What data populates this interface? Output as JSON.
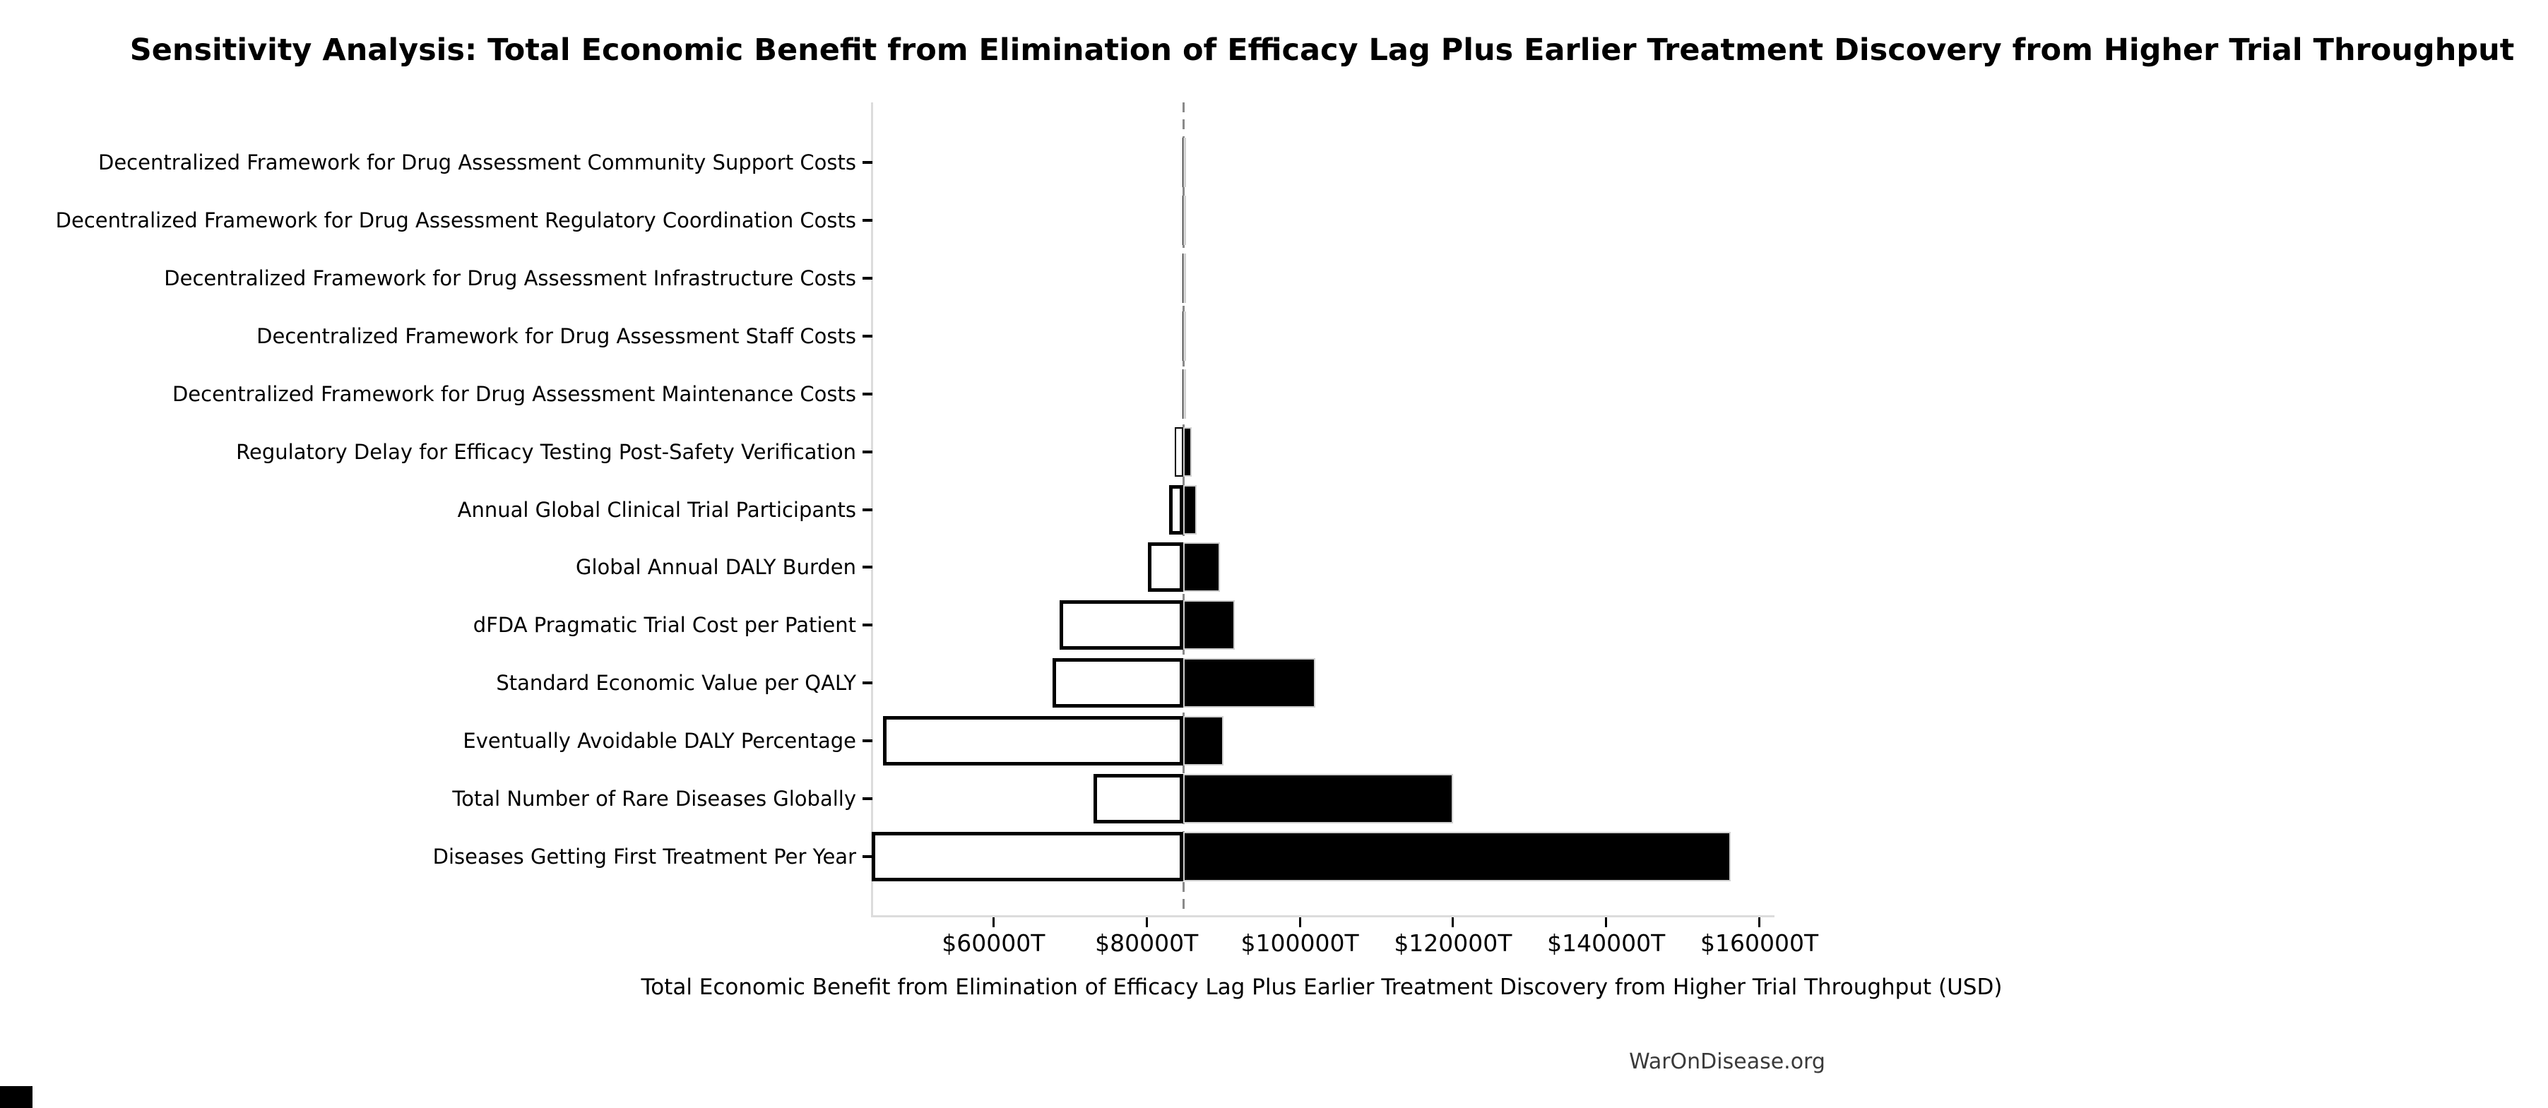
{
  "chart_data": {
    "type": "bar",
    "variant": "tornado-sensitivity",
    "title": "Sensitivity Analysis: Total Economic Benefit from Elimination of Efficacy Lag Plus Earlier Treatment Discovery from Higher Trial Throughput",
    "xlabel": "Total Economic Benefit from Elimination of Efficacy Lag Plus Earlier Treatment Discovery from Higher Trial Throughput (USD)",
    "x_ticks": [
      {
        "label": "$60000T",
        "value": 60000
      },
      {
        "label": "$80000T",
        "value": 80000
      },
      {
        "label": "$100000T",
        "value": 100000
      },
      {
        "label": "$120000T",
        "value": 120000
      },
      {
        "label": "$140000T",
        "value": 140000
      },
      {
        "label": "$160000T",
        "value": 160000
      }
    ],
    "xlim": [
      44100,
      161700
    ],
    "baseline_value": 84800,
    "grid": false,
    "legend": null,
    "rows": [
      {
        "label": "Decentralized Framework for Drug Assessment Community Support Costs",
        "low": 84700,
        "high": 84900
      },
      {
        "label": "Decentralized Framework for Drug Assessment Regulatory Coordination Costs",
        "low": 84700,
        "high": 84900
      },
      {
        "label": "Decentralized Framework for Drug Assessment Infrastructure Costs",
        "low": 84700,
        "high": 84900
      },
      {
        "label": "Decentralized Framework for Drug Assessment Staff Costs",
        "low": 84700,
        "high": 84900
      },
      {
        "label": "Decentralized Framework for Drug Assessment Maintenance Costs",
        "low": 84700,
        "high": 84900
      },
      {
        "label": "Regulatory Delay for Efficacy Testing Post-Safety Verification",
        "low": 83700,
        "high": 85900
      },
      {
        "label": "Annual Global Clinical Trial Participants",
        "low": 82900,
        "high": 86500
      },
      {
        "label": "Global Annual DALY Burden",
        "low": 80200,
        "high": 89600
      },
      {
        "label": "dFDA Pragmatic Trial Cost per Patient",
        "low": 68600,
        "high": 91500
      },
      {
        "label": "Standard Economic Value per QALY",
        "low": 67700,
        "high": 102000
      },
      {
        "label": "Eventually Avoidable DALY Percentage",
        "low": 45600,
        "high": 90000
      },
      {
        "label": "Total Number of Rare Diseases Globally",
        "low": 73100,
        "high": 120000
      },
      {
        "label": "Diseases Getting First Treatment Per Year",
        "low": 44100,
        "high": 156300
      }
    ],
    "colors": {
      "low_fill": "#ffffff",
      "low_edge": "#000000",
      "high_fill": "#000000",
      "high_edge": "#d0d0d0",
      "baseline": "#8a8a8a",
      "spine": "#dcdcdc"
    }
  },
  "footer": {
    "text": "WarOnDisease.org"
  }
}
